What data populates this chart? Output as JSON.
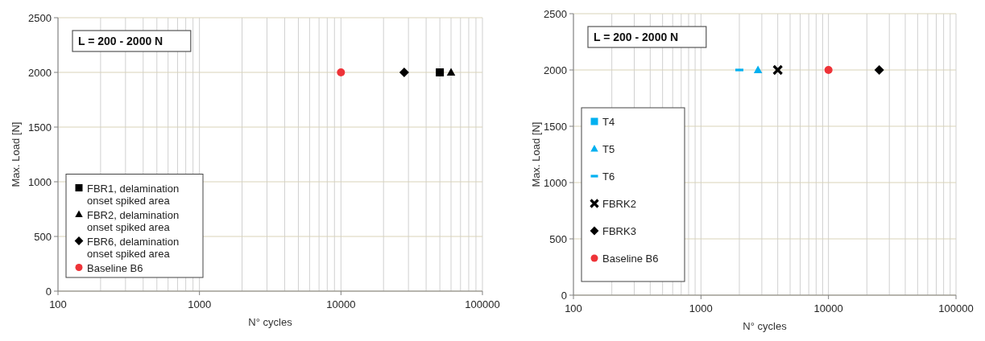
{
  "chart_data": [
    {
      "type": "scatter",
      "xlabel": "N° cycles",
      "ylabel": "Max. Load [N]",
      "log": "x",
      "xlim": [
        100,
        100000
      ],
      "xticks": [
        100,
        1000,
        10000,
        100000
      ],
      "ylim": [
        0,
        2500
      ],
      "yticks": [
        0,
        500,
        1000,
        1500,
        2000,
        2500
      ],
      "grid": true,
      "legend": "bottom left",
      "annotations": [
        "L = 200 - 2000 N"
      ],
      "series": [
        {
          "name": "FBR1, delamination onset spiked area",
          "color": "#000000",
          "marker": "square",
          "x": [
            50000
          ],
          "values": [
            2000
          ]
        },
        {
          "name": "FBR2, delamination onset spiked area",
          "color": "#000000",
          "marker": "triangle",
          "x": [
            60000
          ],
          "values": [
            2000
          ]
        },
        {
          "name": "FBR6, delamination onset spiked area",
          "color": "#000000",
          "marker": "diamond",
          "x": [
            28000
          ],
          "values": [
            2000
          ]
        },
        {
          "name": "Baseline B6",
          "color": "#ee3338",
          "marker": "circle",
          "x": [
            10000
          ],
          "values": [
            2000
          ]
        }
      ]
    },
    {
      "type": "scatter",
      "xlabel": "N° cycles",
      "ylabel": "Max. Load [N]",
      "log": "x",
      "xlim": [
        100,
        100000
      ],
      "xticks": [
        100,
        1000,
        10000,
        100000
      ],
      "ylim": [
        0,
        2500
      ],
      "yticks": [
        0,
        500,
        1000,
        1500,
        2000,
        2500
      ],
      "grid": true,
      "legend": "bottom left",
      "annotations": [
        "L = 200 - 2000 N"
      ],
      "series": [
        {
          "name": "T4",
          "color": "#00b0f0",
          "marker": "square"
        },
        {
          "name": "T5",
          "color": "#00b0f0",
          "marker": "triangle",
          "x": [
            2800
          ],
          "values": [
            2000
          ]
        },
        {
          "name": "T6",
          "color": "#00b0f0",
          "x": [
            2000
          ],
          "values": [
            2000
          ]
        },
        {
          "name": "FBRK2",
          "color": "#000000",
          "marker": "cross",
          "x": [
            4000
          ],
          "values": [
            2000
          ]
        },
        {
          "name": "FBRK3",
          "color": "#000000",
          "marker": "diamond",
          "x": [
            25000
          ],
          "values": [
            2000
          ]
        },
        {
          "name": "Baseline B6",
          "color": "#ee3338",
          "marker": "circle",
          "x": [
            10000
          ],
          "values": [
            2000
          ]
        }
      ]
    }
  ]
}
